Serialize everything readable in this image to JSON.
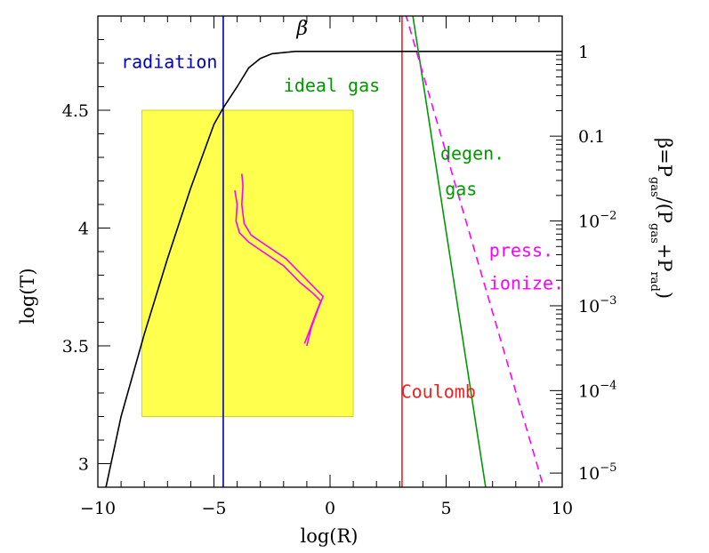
{
  "chart_data": {
    "type": "line",
    "xlabel": "log(R)",
    "ylabel": "log(T)",
    "xlim": [
      -10,
      10
    ],
    "ylim": [
      2.9,
      4.9
    ],
    "x_ticks": [
      {
        "v": -10,
        "t": "−10"
      },
      {
        "v": -5,
        "t": "−5"
      },
      {
        "v": 0,
        "t": "0"
      },
      {
        "v": 5,
        "t": "5"
      },
      {
        "v": 10,
        "t": "10"
      }
    ],
    "y_ticks": [
      {
        "v": 3,
        "t": "3"
      },
      {
        "v": 3.5,
        "t": "3.5"
      },
      {
        "v": 4,
        "t": "4"
      },
      {
        "v": 4.5,
        "t": "4.5"
      }
    ],
    "right_axis": {
      "label_parts": [
        "β=P",
        "gas",
        "/(P",
        "gas",
        "+P",
        "rad",
        ")"
      ],
      "ticks": [
        {
          "v": 4.75,
          "base": "1",
          "exp": ""
        },
        {
          "v": 4.39,
          "base": "0.1",
          "exp": ""
        },
        {
          "v": 4.03,
          "base": "10",
          "exp": "−2"
        },
        {
          "v": 3.67,
          "base": "10",
          "exp": "−3"
        },
        {
          "v": 3.31,
          "base": "10",
          "exp": "−4"
        },
        {
          "v": 2.96,
          "base": "10",
          "exp": "−5"
        }
      ]
    },
    "region": {
      "x": [
        -8.1,
        1.0
      ],
      "y": [
        3.2,
        4.5
      ],
      "color": "#ffff4d"
    },
    "vlines": [
      {
        "x": -4.6,
        "color": "#0000bb"
      },
      {
        "x": 3.1,
        "color": "#ee2222"
      }
    ],
    "series": [
      {
        "label": "β",
        "color": "#000000",
        "dash": false,
        "points": [
          [
            -9.65,
            2.9
          ],
          [
            -9,
            3.2
          ],
          [
            -8,
            3.55
          ],
          [
            -7,
            3.87
          ],
          [
            -6,
            4.17
          ],
          [
            -5,
            4.44
          ],
          [
            -4.6,
            4.51
          ],
          [
            -4,
            4.6
          ],
          [
            -3.5,
            4.68
          ],
          [
            -3,
            4.72
          ],
          [
            -2.5,
            4.74
          ],
          [
            -1.5,
            4.75
          ],
          [
            10,
            4.75
          ]
        ]
      },
      {
        "label": "ideal / degen. gas",
        "color": "#009900",
        "dash": false,
        "points": [
          [
            3.55,
            4.91
          ],
          [
            6.7,
            2.9
          ]
        ]
      },
      {
        "label": "press. ionization",
        "color": "#ff00ff",
        "dash": true,
        "points": [
          [
            3.25,
            4.91
          ],
          [
            9.2,
            2.9
          ]
        ]
      },
      {
        "label": "track",
        "color": "#ff00ff",
        "dash": false,
        "points": [
          [
            -3.8,
            4.23
          ],
          [
            -3.75,
            4.18
          ],
          [
            -3.8,
            4.1
          ],
          [
            -3.7,
            4.02
          ],
          [
            -3.4,
            3.97
          ],
          [
            -2.8,
            3.93
          ],
          [
            -1.9,
            3.87
          ],
          [
            -1.2,
            3.8
          ],
          [
            -0.6,
            3.74
          ],
          [
            -0.3,
            3.71
          ],
          [
            -0.5,
            3.66
          ],
          [
            -0.8,
            3.58
          ],
          [
            -1.0,
            3.5
          ]
        ]
      },
      {
        "label": "track-2",
        "color": "#ff00ff",
        "dash": false,
        "points": [
          [
            -4.1,
            4.16
          ],
          [
            -4.0,
            4.1
          ],
          [
            -4.05,
            4.03
          ],
          [
            -3.9,
            3.98
          ],
          [
            -3.5,
            3.94
          ],
          [
            -2.9,
            3.9
          ],
          [
            -2.0,
            3.84
          ],
          [
            -1.3,
            3.77
          ],
          [
            -0.7,
            3.72
          ],
          [
            -0.4,
            3.69
          ],
          [
            -0.6,
            3.64
          ],
          [
            -0.9,
            3.56
          ],
          [
            -1.1,
            3.51
          ]
        ]
      }
    ],
    "annotations": [
      {
        "text": "β",
        "x": -1.2,
        "y": 4.82,
        "color": "#000000",
        "kind": "beta"
      },
      {
        "text": "radiation",
        "x": -9.0,
        "y": 4.68,
        "color": "#0000bb",
        "kind": "mono"
      },
      {
        "text": "ideal gas",
        "x": -2.0,
        "y": 4.58,
        "color": "#009900",
        "kind": "mono"
      },
      {
        "text": "degen.",
        "x": 4.75,
        "y": 4.29,
        "color": "#009900",
        "kind": "mono"
      },
      {
        "text": "gas",
        "x": 4.95,
        "y": 4.14,
        "color": "#009900",
        "kind": "mono"
      },
      {
        "text": "press.",
        "x": 6.85,
        "y": 3.88,
        "color": "#ff00ff",
        "kind": "mono"
      },
      {
        "text": "ionize.",
        "x": 6.85,
        "y": 3.74,
        "color": "#ff00ff",
        "kind": "mono"
      },
      {
        "text": "Coulomb",
        "x": 3.05,
        "y": 3.28,
        "color": "#ee2222",
        "kind": "mono"
      }
    ]
  }
}
